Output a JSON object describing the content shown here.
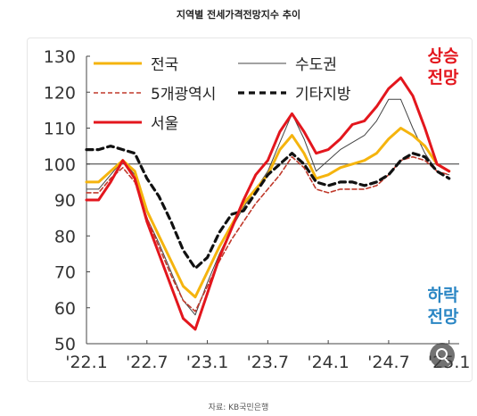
{
  "title": "지역별 전세가격전망지수 추이",
  "source": "자료: KB국민은행",
  "chart_data": {
    "type": "line",
    "ylim": [
      50,
      130
    ],
    "yticks": [
      50,
      60,
      70,
      80,
      90,
      100,
      110,
      120,
      130
    ],
    "xlim": [
      0,
      37
    ],
    "xticks": [
      {
        "label": "'22.1",
        "x": 0
      },
      {
        "label": "'22.7",
        "x": 6
      },
      {
        "label": "'23.1",
        "x": 12
      },
      {
        "label": "'23.7",
        "x": 18
      },
      {
        "label": "'24.1",
        "x": 24
      },
      {
        "label": "'24.7",
        "x": 30
      },
      {
        "label": "'25.1",
        "x": 36
      }
    ],
    "reference_line": 100,
    "annotations": {
      "up": [
        "상승",
        "전망"
      ],
      "down": [
        "하락",
        "전망"
      ]
    },
    "colors": {
      "nation": "#f5b40e",
      "capital": "#444444",
      "metro5": "#c0392b",
      "other": "#111111",
      "seoul": "#e3161d",
      "up": "#e3161d",
      "down": "#2a86c4"
    },
    "series": [
      {
        "key": "nation",
        "name": "전국",
        "values": [
          95,
          95,
          98,
          101,
          98,
          87,
          80,
          73,
          66,
          63,
          70,
          77,
          83,
          89,
          93,
          97,
          104,
          108,
          103,
          96,
          97,
          99,
          100,
          101,
          103,
          107,
          110,
          108,
          105,
          100,
          98
        ]
      },
      {
        "key": "capital",
        "name": "수도권",
        "values": [
          93,
          93,
          97,
          101,
          97,
          85,
          78,
          70,
          62,
          58,
          67,
          75,
          82,
          88,
          93,
          98,
          106,
          114,
          107,
          98,
          101,
          104,
          106,
          108,
          112,
          118,
          118,
          110,
          103,
          98,
          97
        ]
      },
      {
        "key": "metro5",
        "name": "5개광역시",
        "values": [
          92,
          92,
          96,
          99,
          95,
          85,
          77,
          69,
          62,
          59,
          66,
          73,
          79,
          84,
          89,
          93,
          97,
          102,
          99,
          93,
          92,
          93,
          93,
          93,
          94,
          97,
          101,
          102,
          101,
          98,
          97
        ]
      },
      {
        "key": "other",
        "name": "기타지방",
        "values": [
          104,
          104,
          105,
          104,
          103,
          96,
          91,
          84,
          76,
          71,
          74,
          81,
          86,
          87,
          92,
          97,
          100,
          103,
          100,
          95,
          94,
          95,
          95,
          94,
          95,
          97,
          101,
          103,
          102,
          98,
          96
        ]
      },
      {
        "key": "seoul",
        "name": "서울",
        "values": [
          90,
          90,
          95,
          101,
          96,
          84,
          75,
          66,
          57,
          54,
          64,
          74,
          82,
          90,
          97,
          101,
          109,
          114,
          109,
          103,
          104,
          107,
          111,
          112,
          116,
          121,
          124,
          119,
          110,
          100,
          98
        ]
      }
    ]
  }
}
